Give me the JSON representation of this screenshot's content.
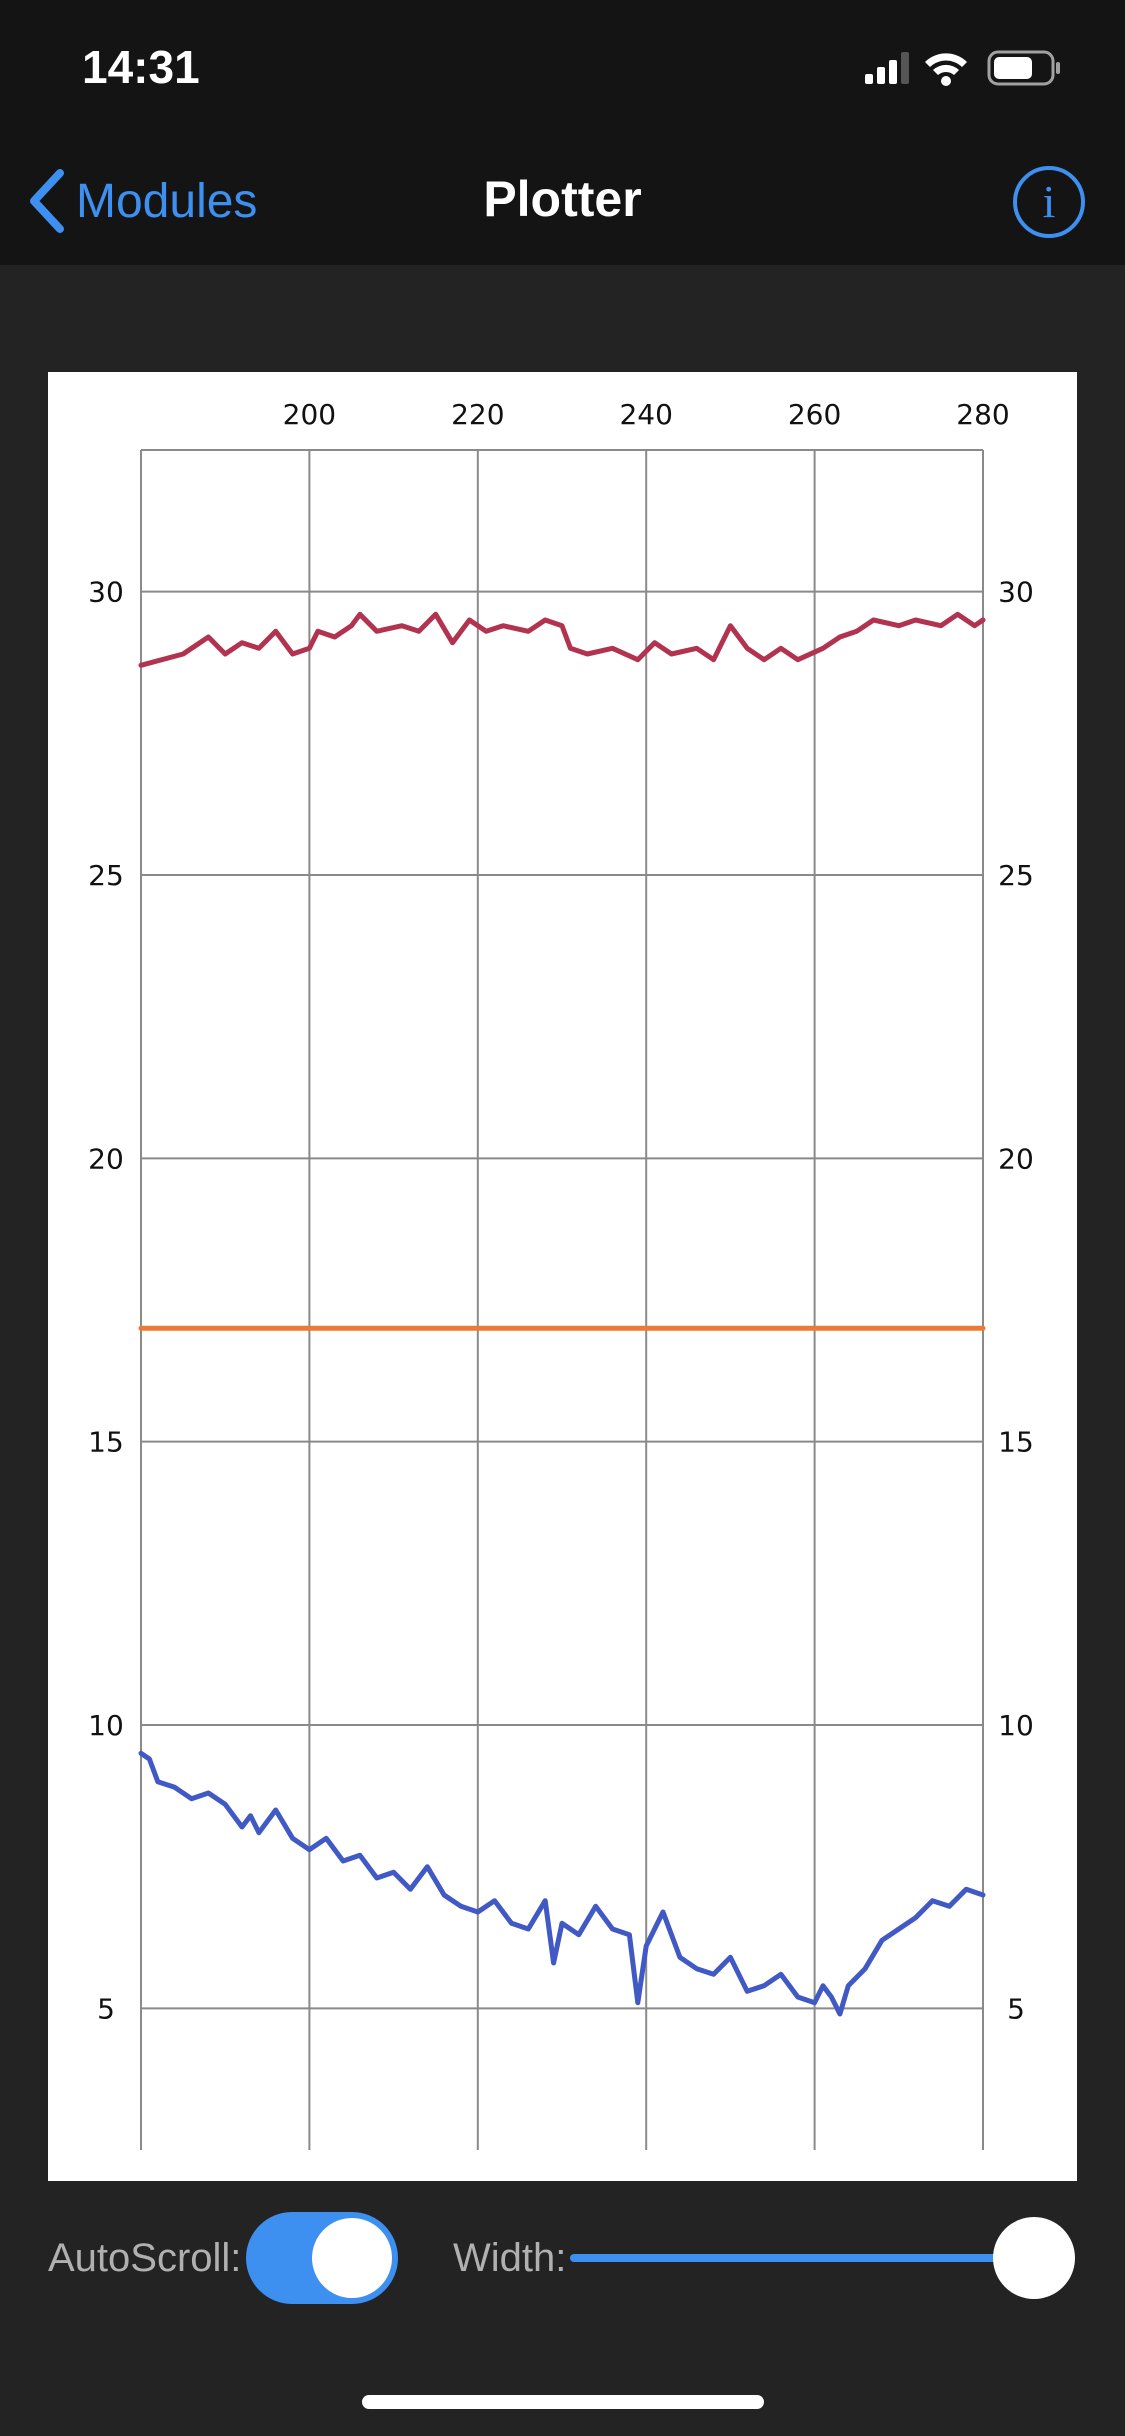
{
  "status_bar": {
    "time": "14:31"
  },
  "nav": {
    "back_label": "Modules",
    "title": "Plotter",
    "info_icon": "i"
  },
  "chart_data": {
    "type": "line",
    "xlim": [
      180,
      280
    ],
    "ylim": [
      2.5,
      32.5
    ],
    "x_ticks": [
      "200",
      "220",
      "240",
      "260",
      "280"
    ],
    "y_ticks": [
      "5",
      "10",
      "15",
      "20",
      "25",
      "30"
    ],
    "x_tick_values": [
      200,
      220,
      240,
      260,
      280
    ],
    "y_tick_values": [
      5,
      10,
      15,
      20,
      25,
      30
    ],
    "grid": true,
    "series": [
      {
        "color": "#b2334f",
        "x": [
          180,
          185,
          188,
          190,
          192,
          194,
          196,
          198,
          200,
          201,
          203,
          205,
          206,
          208,
          211,
          213,
          215,
          217,
          219,
          221,
          223,
          226,
          228,
          230,
          231,
          233,
          236,
          239,
          241,
          243,
          246,
          248,
          250,
          252,
          254,
          256,
          258,
          261,
          263,
          265,
          267,
          270,
          272,
          275,
          277,
          279,
          280
        ],
        "y": [
          28.7,
          28.9,
          29.2,
          28.9,
          29.1,
          29.0,
          29.3,
          28.9,
          29.0,
          29.3,
          29.2,
          29.4,
          29.6,
          29.3,
          29.4,
          29.3,
          29.6,
          29.1,
          29.5,
          29.3,
          29.4,
          29.3,
          29.5,
          29.4,
          29.0,
          28.9,
          29.0,
          28.8,
          29.1,
          28.9,
          29.0,
          28.8,
          29.4,
          29.0,
          28.8,
          29.0,
          28.8,
          29.0,
          29.2,
          29.3,
          29.5,
          29.4,
          29.5,
          29.4,
          29.6,
          29.4,
          29.5
        ]
      },
      {
        "color": "#ed7a32",
        "x": [
          180,
          280
        ],
        "y": [
          17.0,
          17.0
        ]
      },
      {
        "color": "#4159c5",
        "x": [
          180,
          181,
          182,
          184,
          186,
          188,
          190,
          192,
          193,
          194,
          196,
          198,
          200,
          202,
          204,
          206,
          208,
          210,
          212,
          214,
          216,
          218,
          220,
          222,
          224,
          226,
          228,
          229,
          230,
          232,
          234,
          236,
          238,
          239,
          240,
          242,
          244,
          246,
          248,
          250,
          252,
          254,
          256,
          258,
          260,
          261,
          262,
          263,
          264,
          266,
          268,
          270,
          272,
          274,
          276,
          278,
          280
        ],
        "y": [
          9.5,
          9.4,
          9.0,
          8.9,
          8.7,
          8.8,
          8.6,
          8.2,
          8.4,
          8.1,
          8.5,
          8.0,
          7.8,
          8.0,
          7.6,
          7.7,
          7.3,
          7.4,
          7.1,
          7.5,
          7.0,
          6.8,
          6.7,
          6.9,
          6.5,
          6.4,
          6.9,
          5.8,
          6.5,
          6.3,
          6.8,
          6.4,
          6.3,
          5.1,
          6.1,
          6.7,
          5.9,
          5.7,
          5.6,
          5.9,
          5.3,
          5.4,
          5.6,
          5.2,
          5.1,
          5.4,
          5.2,
          4.9,
          5.4,
          5.7,
          6.2,
          6.4,
          6.6,
          6.9,
          6.8,
          7.1,
          7.0
        ]
      }
    ]
  },
  "controls": {
    "autoscroll_label": "AutoScroll:",
    "autoscroll_on": true,
    "width_label": "Width:",
    "width_value_fraction": 1.0
  },
  "colors": {
    "accent": "#3d8ff0",
    "background": "#232323",
    "bars": "#141414"
  }
}
